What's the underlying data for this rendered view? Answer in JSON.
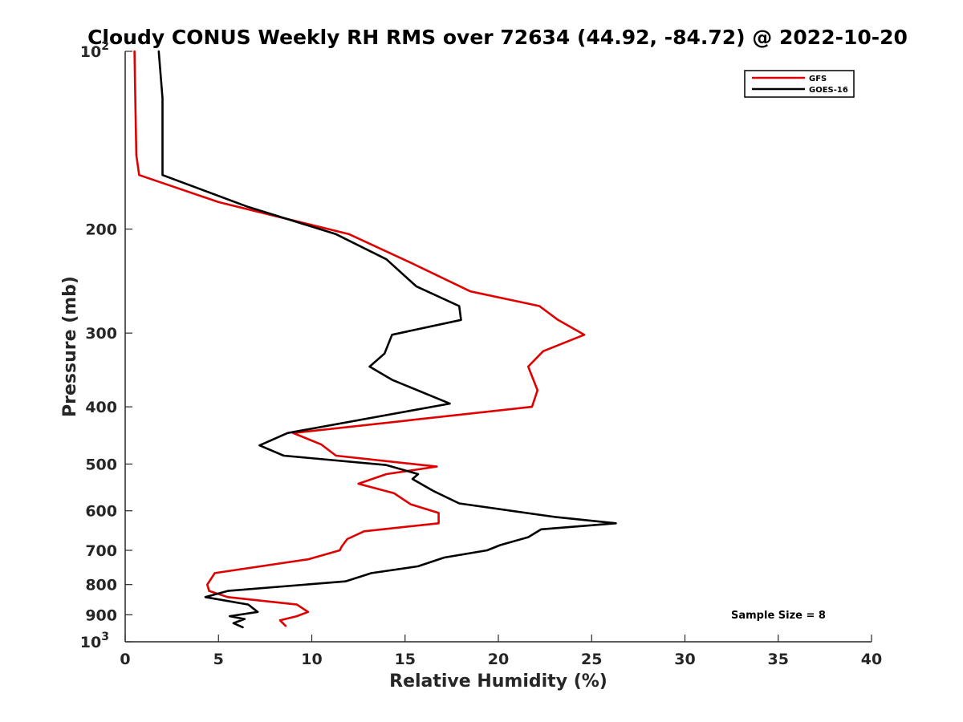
{
  "chart_data": {
    "type": "line",
    "title": "Cloudy CONUS Weekly RH RMS over 72634 (44.92, -84.72) @ 2022-10-20",
    "xlabel": "Relative Humidity (%)",
    "ylabel": "Pressure (mb)",
    "xlim": [
      0,
      40
    ],
    "ylim": [
      100,
      1000
    ],
    "y_scale": "log",
    "y_reversed": true,
    "grid": false,
    "legend_position": "top-right",
    "annotation": "Sample Size = 8",
    "x_ticks": [
      "0",
      "5",
      "10",
      "15",
      "20",
      "25",
      "30",
      "35",
      "40"
    ],
    "y_ticks": [
      {
        "value": 100,
        "label": "10",
        "sup": "2"
      },
      {
        "value": 200,
        "label": "200",
        "sup": ""
      },
      {
        "value": 300,
        "label": "300",
        "sup": ""
      },
      {
        "value": 400,
        "label": "400",
        "sup": ""
      },
      {
        "value": 500,
        "label": "500",
        "sup": ""
      },
      {
        "value": 600,
        "label": "600",
        "sup": ""
      },
      {
        "value": 700,
        "label": "700",
        "sup": ""
      },
      {
        "value": 800,
        "label": "800",
        "sup": ""
      },
      {
        "value": 900,
        "label": "900",
        "sup": ""
      },
      {
        "value": 1000,
        "label": "10",
        "sup": "3"
      }
    ],
    "series": [
      {
        "name": "GFS",
        "color": "#e00000",
        "points": [
          [
            0.5,
            100
          ],
          [
            0.55,
            125
          ],
          [
            0.6,
            150
          ],
          [
            0.75,
            162
          ],
          [
            5,
            180
          ],
          [
            12,
            204
          ],
          [
            15.3,
            228
          ],
          [
            18.5,
            255
          ],
          [
            22.2,
            270
          ],
          [
            23.2,
            285
          ],
          [
            24.6,
            302
          ],
          [
            22.4,
            322
          ],
          [
            21.6,
            342
          ],
          [
            22.1,
            375
          ],
          [
            21.8,
            400
          ],
          [
            9,
            443
          ],
          [
            10.5,
            463
          ],
          [
            11.3,
            484
          ],
          [
            16.7,
            505
          ],
          [
            14,
            520
          ],
          [
            12.5,
            540
          ],
          [
            14.4,
            560
          ],
          [
            15.3,
            585
          ],
          [
            16.8,
            605
          ],
          [
            16.8,
            630
          ],
          [
            12.8,
            650
          ],
          [
            11.9,
            670
          ],
          [
            11.6,
            690
          ],
          [
            11.5,
            700
          ],
          [
            9.8,
            725
          ],
          [
            4.8,
            765
          ],
          [
            4.4,
            800
          ],
          [
            4.5,
            820
          ],
          [
            5.5,
            840
          ],
          [
            9.2,
            865
          ],
          [
            9.8,
            890
          ],
          [
            9.2,
            905
          ],
          [
            8.3,
            920
          ],
          [
            8.6,
            940
          ]
        ]
      },
      {
        "name": "GOES-16",
        "color": "#000000",
        "points": [
          [
            1.8,
            100
          ],
          [
            2,
            120
          ],
          [
            2,
            150
          ],
          [
            2,
            162
          ],
          [
            6.5,
            183
          ],
          [
            11.3,
            204
          ],
          [
            14,
            225
          ],
          [
            15.6,
            250
          ],
          [
            17.9,
            270
          ],
          [
            18,
            285
          ],
          [
            14.3,
            302
          ],
          [
            13.9,
            325
          ],
          [
            13.1,
            342
          ],
          [
            14.3,
            360
          ],
          [
            17.4,
            395
          ],
          [
            8.7,
            443
          ],
          [
            7.2,
            465
          ],
          [
            8.5,
            484
          ],
          [
            14,
            502
          ],
          [
            15.7,
            520
          ],
          [
            15.4,
            530
          ],
          [
            16.5,
            555
          ],
          [
            17.9,
            583
          ],
          [
            23.1,
            615
          ],
          [
            26.3,
            630
          ],
          [
            22.3,
            645
          ],
          [
            21.6,
            665
          ],
          [
            20.1,
            686
          ],
          [
            19.4,
            700
          ],
          [
            17.1,
            720
          ],
          [
            15.7,
            745
          ],
          [
            13.2,
            765
          ],
          [
            11.8,
            790
          ],
          [
            5.5,
            820
          ],
          [
            4.3,
            840
          ],
          [
            6.6,
            865
          ],
          [
            7.1,
            890
          ],
          [
            5.6,
            905
          ],
          [
            6.4,
            915
          ],
          [
            5.8,
            930
          ],
          [
            6.3,
            945
          ]
        ]
      }
    ]
  }
}
